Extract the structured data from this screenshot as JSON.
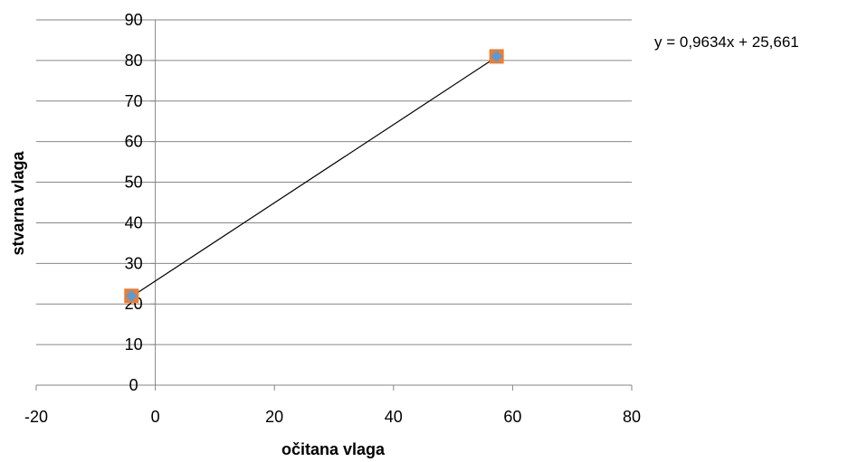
{
  "chart_data": {
    "type": "scatter",
    "xlabel": "očitana vlaga",
    "ylabel": "stvarna vlaga",
    "xlim": [
      -20,
      80
    ],
    "ylim": [
      0,
      90
    ],
    "xticks": [
      -20,
      0,
      20,
      40,
      60,
      80
    ],
    "yticks": [
      0,
      10,
      20,
      30,
      40,
      50,
      60,
      70,
      80,
      90
    ],
    "grid": "horizontal",
    "series": [
      {
        "points": [
          {
            "x": -4,
            "y": 22
          },
          {
            "x": 57.3,
            "y": 81
          }
        ],
        "marker_color": "#ed7d31",
        "marker_shape": "square"
      },
      {
        "points": [
          {
            "x": -4,
            "y": 22
          },
          {
            "x": 57.3,
            "y": 81
          }
        ],
        "marker_color": "#5b9bd5",
        "marker_shape": "diamond"
      }
    ],
    "trendline": {
      "equation": "y = 0,9634x + 25,661",
      "slope": 0.9634,
      "intercept": 25.661,
      "x_range": [
        -4,
        57.3
      ],
      "color": "#000000"
    },
    "colors": {
      "gridline": "#868686",
      "axis": "#868686"
    }
  }
}
